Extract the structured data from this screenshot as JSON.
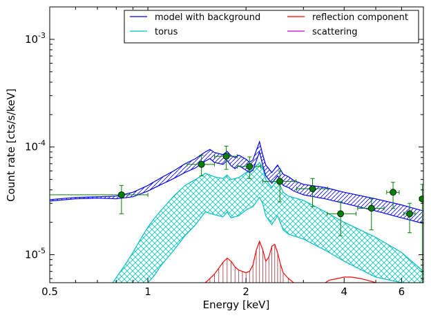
{
  "chart_data": {
    "type": "line",
    "title": "",
    "xlabel": "Energy [keV]",
    "ylabel": "Count rate [cts/s/keV]",
    "xscale": "log",
    "yscale": "log",
    "xlim": [
      0.5,
      7.0
    ],
    "ylim": [
      5.5e-06,
      0.002
    ],
    "x_ticks": [
      {
        "value": 0.5,
        "label": "0.5"
      },
      {
        "value": 1,
        "label": "1"
      },
      {
        "value": 2,
        "label": "2"
      },
      {
        "value": 4,
        "label": "4"
      },
      {
        "value": 6,
        "label": "6"
      }
    ],
    "y_ticks": [
      {
        "value": 1e-05,
        "base": "10",
        "exp": "-5"
      },
      {
        "value": 0.0001,
        "base": "10",
        "exp": "-4"
      },
      {
        "value": 0.001,
        "base": "10",
        "exp": "-3"
      }
    ],
    "grid": false,
    "legend_position": "top-right",
    "legend": [
      {
        "label": "model with background",
        "color": "#0000ff"
      },
      {
        "label": "reflection component",
        "color": "#ff0000"
      },
      {
        "label": "torus",
        "color": "#00bfbf"
      },
      {
        "label": "scattering",
        "color": "#bf00bf"
      }
    ],
    "series": [
      {
        "name": "model with background",
        "color": "#0000ff",
        "x": [
          0.5,
          0.6,
          0.7,
          0.8,
          0.9,
          1.0,
          1.1,
          1.2,
          1.3,
          1.4,
          1.5,
          1.55,
          1.6,
          1.7,
          1.75,
          1.8,
          1.85,
          1.9,
          2.0,
          2.05,
          2.1,
          2.2,
          2.25,
          2.3,
          2.4,
          2.5,
          2.6,
          2.7,
          2.8,
          3.0,
          3.5,
          4.0,
          5.0,
          6.0,
          7.0
        ],
        "upper": [
          3.25e-05,
          3.4e-05,
          3.45e-05,
          3.5e-05,
          3.8e-05,
          4.4e-05,
          5.2e-05,
          6e-05,
          7e-05,
          7.8e-05,
          9e-05,
          9.5e-05,
          8.9e-05,
          8.5e-05,
          9.1e-05,
          8.3e-05,
          8e-05,
          8.4e-05,
          7.7e-05,
          7.2e-05,
          7.6e-05,
          0.000112,
          8.5e-05,
          6.8e-05,
          5.8e-05,
          6.8e-05,
          5.6e-05,
          5.3e-05,
          4.9e-05,
          4.5e-05,
          4.2e-05,
          3.8e-05,
          3.3e-05,
          2.9e-05,
          2.55e-05
        ],
        "lower": [
          3.15e-05,
          3.3e-05,
          3.35e-05,
          3.3e-05,
          3.45e-05,
          3.9e-05,
          4.5e-05,
          5.1e-05,
          5.8e-05,
          6.4e-05,
          7.4e-05,
          7.8e-05,
          7.2e-05,
          6.9e-05,
          7.5e-05,
          6.7e-05,
          6.3e-05,
          6.7e-05,
          6.1e-05,
          5.8e-05,
          6.1e-05,
          9e-05,
          6.8e-05,
          5.4e-05,
          4.6e-05,
          5.4e-05,
          4.4e-05,
          4.2e-05,
          3.9e-05,
          3.6e-05,
          3.3e-05,
          3e-05,
          2.55e-05,
          2.2e-05,
          1.95e-05
        ]
      },
      {
        "name": "torus",
        "color": "#00bfbf",
        "x": [
          0.78,
          0.85,
          0.9,
          0.95,
          1.0,
          1.05,
          1.1,
          1.2,
          1.3,
          1.4,
          1.5,
          1.6,
          1.7,
          1.75,
          1.8,
          1.9,
          2.0,
          2.1,
          2.2,
          2.25,
          2.3,
          2.4,
          2.5,
          2.6,
          2.7,
          3.0,
          3.5,
          4.0,
          5.0,
          6.0,
          7.0
        ],
        "upper": [
          5.5e-06,
          8e-06,
          1.05e-05,
          1.4e-05,
          1.8e-05,
          2.2e-05,
          2.6e-05,
          3.5e-05,
          4.4e-05,
          5e-05,
          5.7e-05,
          5.3e-05,
          5.1e-05,
          5.5e-05,
          5e-05,
          5.2e-05,
          5.8e-05,
          6.2e-05,
          7.2e-05,
          6.4e-05,
          5e-05,
          4.2e-05,
          5e-05,
          3.8e-05,
          3.5e-05,
          3.2e-05,
          2.5e-05,
          2e-05,
          1.45e-05,
          1.05e-05,
          7e-06
        ],
        "lower": [
          null,
          null,
          null,
          null,
          5.5e-06,
          6.5e-06,
          8e-06,
          1.1e-05,
          1.5e-05,
          1.9e-05,
          2.5e-05,
          2.35e-05,
          2.25e-05,
          2.5e-05,
          2.2e-05,
          2.3e-05,
          2.6e-05,
          2.8e-05,
          3.4e-05,
          3e-05,
          2.3e-05,
          1.9e-05,
          2.3e-05,
          1.7e-05,
          1.55e-05,
          1.4e-05,
          1.1e-05,
          8.7e-06,
          6.2e-06,
          5.5e-06,
          null
        ]
      },
      {
        "name": "reflection component",
        "color": "#ff0000",
        "x": [
          1.5,
          1.55,
          1.6,
          1.65,
          1.7,
          1.75,
          1.8,
          1.85,
          1.9,
          1.95,
          2.0,
          2.05,
          2.1,
          2.15,
          2.2,
          2.25,
          2.3,
          2.35,
          2.4,
          2.45,
          2.5,
          2.55,
          2.6,
          2.7,
          2.8,
          3.0,
          3.5,
          3.6,
          3.8,
          4.0,
          4.2,
          4.5,
          4.8,
          5.0
        ],
        "values": [
          5.5e-06,
          6e-06,
          6.6e-06,
          7.5e-06,
          8.5e-06,
          9.3e-06,
          8.7e-06,
          7.7e-06,
          7.2e-06,
          7e-06,
          6.8e-06,
          7e-06,
          8e-06,
          1.1e-05,
          1.33e-05,
          1.12e-05,
          8.7e-06,
          9.5e-06,
          1.2e-05,
          1.25e-05,
          1.04e-05,
          8.2e-06,
          6.8e-06,
          6e-06,
          5.5e-06,
          null,
          5.5e-06,
          5.8e-06,
          6e-06,
          6.2e-06,
          6.2e-06,
          6e-06,
          5.7e-06,
          5.5e-06
        ]
      }
    ],
    "data_points": {
      "name": "data",
      "color": "#007f00",
      "points": [
        {
          "x": 0.83,
          "y": 3.6e-05,
          "xerr": [
            0.33,
            0.17
          ],
          "yerr": [
            1.2e-05,
            8e-06
          ]
        },
        {
          "x": 1.46,
          "y": 6.9e-05,
          "xerr": [
            0.14,
            0.14
          ],
          "yerr": [
            1.5e-05,
            1.5e-05
          ]
        },
        {
          "x": 1.74,
          "y": 8.2e-05,
          "xerr": [
            0.14,
            0.14
          ],
          "yerr": [
            2e-05,
            2e-05
          ]
        },
        {
          "x": 2.05,
          "y": 6.6e-05,
          "xerr": [
            0.17,
            0.17
          ],
          "yerr": [
            1.5e-05,
            1.5e-05
          ]
        },
        {
          "x": 2.54,
          "y": 4.8e-05,
          "xerr": [
            0.29,
            0.31
          ],
          "yerr": [
            1.7e-05,
            1.2e-05
          ]
        },
        {
          "x": 3.2,
          "y": 4.1e-05,
          "xerr": [
            0.34,
            0.36
          ],
          "yerr": [
            1.3e-05,
            1e-05
          ]
        },
        {
          "x": 3.9,
          "y": 2.4e-05,
          "xerr": [
            0.35,
            0.45
          ],
          "yerr": [
            9e-06,
            7e-06
          ]
        },
        {
          "x": 4.85,
          "y": 2.7e-05,
          "xerr": [
            0.45,
            0.45
          ],
          "yerr": [
            1e-05,
            6e-06
          ]
        },
        {
          "x": 5.65,
          "y": 3.8e-05,
          "xerr": [
            0.25,
            0.25
          ],
          "yerr": [
            1.1e-05,
            9e-06
          ]
        },
        {
          "x": 6.35,
          "y": 2.4e-05,
          "xerr": [
            0.25,
            0.25
          ],
          "yerr": [
            8e-06,
            6e-06
          ]
        },
        {
          "x": 6.95,
          "y": 3.3e-05,
          "xerr": [
            0.15,
            0.0
          ],
          "yerr": [
            2.8e-05,
            1.2e-05
          ]
        }
      ]
    }
  }
}
